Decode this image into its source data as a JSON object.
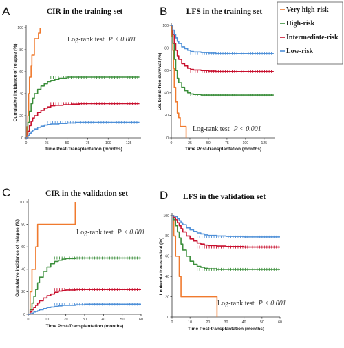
{
  "colors": {
    "very_high": "#F07A2E",
    "high": "#3C8F3C",
    "intermediate": "#C8102E",
    "low": "#4F90D8"
  },
  "legend": {
    "items": [
      {
        "label": "Very high-risk",
        "color": "#F07A2E"
      },
      {
        "label": "High-risk",
        "color": "#3C8F3C"
      },
      {
        "label": "Intermediate-risk",
        "color": "#C8102E"
      },
      {
        "label": "Low-risk",
        "color": "#4F90D8"
      }
    ]
  },
  "chart_data": [
    {
      "panel": "A",
      "type": "line",
      "title": "CIR in the training set",
      "xlabel": "Time Post-Transplantation (months)",
      "ylabel": "Cumulative incidence of relapse (%)",
      "xlim": [
        0,
        140
      ],
      "ylim": [
        0,
        100
      ],
      "xticks": [
        0,
        25,
        50,
        75,
        100,
        125
      ],
      "yticks": [
        0,
        20,
        40,
        60,
        80,
        100
      ],
      "annotation": {
        "text": "Log-rank test",
        "p_text": "P < 0.001"
      },
      "series": [
        {
          "name": "Very high-risk",
          "color": "#F07A2E",
          "x": [
            0,
            1,
            2,
            3,
            4,
            6,
            7,
            10,
            11,
            12,
            14,
            15,
            17
          ],
          "y": [
            0,
            10,
            20,
            40,
            55,
            65,
            75,
            90,
            90,
            90,
            90,
            95,
            100
          ]
        },
        {
          "name": "High-risk",
          "color": "#3C8F3C",
          "x": [
            0,
            2,
            4,
            6,
            8,
            10,
            14,
            18,
            22,
            26,
            30,
            35,
            40,
            50,
            60,
            80,
            100,
            120,
            138
          ],
          "y": [
            0,
            14,
            24,
            31,
            36,
            40,
            44,
            47,
            49,
            51,
            52,
            53,
            54,
            55,
            55,
            55,
            55,
            55,
            55
          ]
        },
        {
          "name": "Intermediate-risk",
          "color": "#C8102E",
          "x": [
            0,
            2,
            4,
            6,
            8,
            10,
            14,
            18,
            22,
            26,
            30,
            35,
            45,
            55,
            65,
            80,
            100,
            120,
            138
          ],
          "y": [
            0,
            6,
            11,
            15,
            18,
            20,
            23,
            25,
            27,
            28,
            29,
            29.5,
            30,
            30.5,
            31,
            31,
            31,
            31,
            31
          ]
        },
        {
          "name": "Low-risk",
          "color": "#4F90D8",
          "x": [
            0,
            2,
            4,
            6,
            8,
            10,
            14,
            18,
            22,
            26,
            30,
            40,
            50,
            60,
            80,
            100,
            120,
            138
          ],
          "y": [
            0,
            2,
            4,
            5.5,
            7,
            8,
            9.5,
            10.5,
            11.5,
            12,
            12.5,
            13,
            13.5,
            14,
            14,
            14,
            14,
            14
          ]
        }
      ]
    },
    {
      "panel": "B",
      "type": "line",
      "title": "LFS in the training set",
      "xlabel": "Time Post-transplantation (months)",
      "ylabel": "Leukemia-free survival (%)",
      "xlim": [
        0,
        140
      ],
      "ylim": [
        0,
        100
      ],
      "xticks": [
        0,
        25,
        50,
        75,
        100,
        125
      ],
      "yticks": [
        0,
        20,
        40,
        60,
        80,
        100
      ],
      "annotation": {
        "text": "Log-rank test",
        "p_text": "P < 0.001"
      },
      "series": [
        {
          "name": "Very high-risk",
          "color": "#F07A2E",
          "x": [
            0,
            1,
            2,
            3,
            4,
            6,
            8,
            10,
            12,
            14,
            16,
            18,
            20
          ],
          "y": [
            100,
            90,
            78,
            62,
            45,
            32,
            22,
            18,
            10,
            10,
            10,
            10,
            0
          ]
        },
        {
          "name": "High-risk",
          "color": "#3C8F3C",
          "x": [
            0,
            2,
            4,
            6,
            8,
            10,
            14,
            18,
            22,
            26,
            30,
            40,
            50,
            60,
            80,
            100,
            120,
            138
          ],
          "y": [
            100,
            84,
            70,
            60,
            53,
            49,
            45,
            42,
            40,
            39,
            38.5,
            38,
            38,
            38,
            38,
            38,
            38,
            38
          ]
        },
        {
          "name": "Intermediate-risk",
          "color": "#C8102E",
          "x": [
            0,
            2,
            4,
            6,
            8,
            10,
            14,
            18,
            22,
            26,
            30,
            40,
            50,
            60,
            80,
            100,
            120,
            138
          ],
          "y": [
            100,
            92,
            84,
            78,
            73,
            70,
            66,
            64,
            62,
            61,
            60.5,
            60,
            59.5,
            59,
            59,
            59,
            59,
            59
          ]
        },
        {
          "name": "Low-risk",
          "color": "#4F90D8",
          "x": [
            0,
            2,
            4,
            6,
            8,
            10,
            14,
            18,
            22,
            26,
            30,
            40,
            50,
            60,
            80,
            100,
            120,
            138
          ],
          "y": [
            100,
            96,
            92,
            89,
            86,
            84,
            81,
            79.5,
            78,
            77,
            76.5,
            76,
            75.5,
            75,
            75,
            75,
            75,
            75
          ]
        }
      ]
    },
    {
      "panel": "C",
      "type": "line",
      "title": "CIR in the validation set",
      "xlabel": "Time Post-Transplantation (months)",
      "ylabel": "Cumulative incidence of relapse (%)",
      "xlim": [
        0,
        60
      ],
      "ylim": [
        0,
        100
      ],
      "xticks": [
        0,
        10,
        20,
        30,
        40,
        50,
        60
      ],
      "yticks": [
        0,
        20,
        40,
        60,
        80,
        100
      ],
      "annotation": {
        "text": "Log-rank test",
        "p_text": "P < 0.001"
      },
      "series": [
        {
          "name": "Very high-risk",
          "color": "#F07A2E",
          "x": [
            0,
            1,
            2,
            3,
            4,
            5,
            25,
            25
          ],
          "y": [
            0,
            20,
            40,
            40,
            60,
            80,
            80,
            100
          ]
        },
        {
          "name": "High-risk",
          "color": "#3C8F3C",
          "x": [
            0,
            1,
            2,
            3,
            4,
            5,
            6,
            8,
            10,
            12,
            14,
            16,
            18,
            20,
            25,
            30,
            40,
            50,
            60
          ],
          "y": [
            0,
            4,
            10,
            16,
            22,
            28,
            33,
            38,
            42,
            45,
            47,
            48,
            49,
            49.5,
            50,
            50,
            50,
            50,
            50
          ]
        },
        {
          "name": "Intermediate-risk",
          "color": "#C8102E",
          "x": [
            0,
            1,
            2,
            3,
            4,
            5,
            6,
            8,
            10,
            12,
            14,
            16,
            18,
            20,
            25,
            30,
            40,
            50,
            60
          ],
          "y": [
            0,
            2,
            4,
            6,
            8,
            10,
            12,
            14.5,
            16.5,
            18,
            19.5,
            20.5,
            21,
            21.5,
            22,
            22,
            22,
            22,
            22
          ]
        },
        {
          "name": "Low-risk",
          "color": "#4F90D8",
          "x": [
            0,
            1,
            2,
            3,
            4,
            5,
            6,
            8,
            10,
            12,
            14,
            16,
            18,
            20,
            25,
            30,
            40,
            50,
            60
          ],
          "y": [
            0,
            0.5,
            1,
            2,
            2.5,
            3,
            4,
            5,
            6,
            6.5,
            7,
            7.5,
            8,
            8,
            8.5,
            9,
            9,
            9,
            9
          ]
        }
      ]
    },
    {
      "panel": "D",
      "type": "line",
      "title": "LFS in the validation set",
      "xlabel": "Time Post-transplantation (months)",
      "ylabel": "Leukemia free-survival (%)",
      "xlim": [
        0,
        60
      ],
      "ylim": [
        0,
        100
      ],
      "xticks": [
        0,
        10,
        20,
        30,
        40,
        50,
        60
      ],
      "yticks": [
        0,
        20,
        40,
        60,
        80,
        100
      ],
      "annotation": {
        "text": "Log-rank test",
        "p_text": "P < 0.001"
      },
      "series": [
        {
          "name": "Very high-risk",
          "color": "#F07A2E",
          "x": [
            0,
            1,
            2,
            3,
            4,
            5,
            25,
            25
          ],
          "y": [
            100,
            80,
            60,
            60,
            40,
            20,
            20,
            0
          ]
        },
        {
          "name": "High-risk",
          "color": "#3C8F3C",
          "x": [
            0,
            1,
            2,
            3,
            4,
            5,
            6,
            8,
            10,
            12,
            14,
            16,
            18,
            20,
            25,
            30,
            40,
            50,
            60
          ],
          "y": [
            100,
            96,
            90,
            84,
            78,
            72,
            66,
            60,
            55,
            52,
            50,
            49,
            48,
            47.5,
            47,
            47,
            47,
            47,
            47
          ]
        },
        {
          "name": "Intermediate-risk",
          "color": "#C8102E",
          "x": [
            0,
            1,
            2,
            3,
            4,
            5,
            6,
            8,
            10,
            12,
            14,
            16,
            18,
            20,
            25,
            30,
            40,
            50,
            60
          ],
          "y": [
            100,
            98,
            96,
            93,
            90,
            87,
            84,
            80,
            77,
            75,
            73,
            72,
            71,
            70.5,
            70,
            69.5,
            69,
            69,
            69
          ]
        },
        {
          "name": "Low-risk",
          "color": "#4F90D8",
          "x": [
            0,
            1,
            2,
            3,
            4,
            5,
            6,
            8,
            10,
            12,
            14,
            16,
            18,
            20,
            25,
            30,
            40,
            50,
            60
          ],
          "y": [
            100,
            99.5,
            99,
            97,
            95,
            93,
            91,
            88,
            86,
            84.5,
            83,
            82,
            81,
            80.5,
            80,
            79.5,
            79,
            79,
            79
          ]
        }
      ]
    }
  ]
}
